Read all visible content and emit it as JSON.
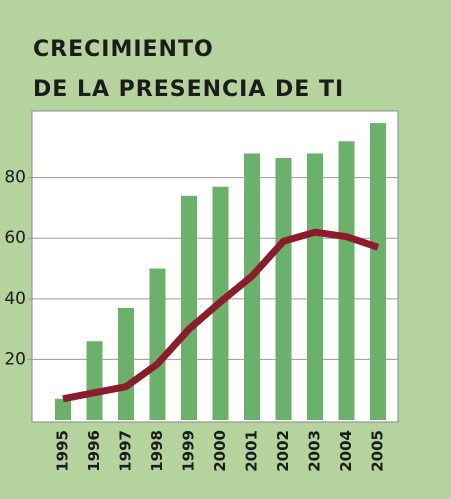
{
  "chart_data": {
    "type": "combo",
    "title": [
      "CRECIMIENTO",
      "DE LA PRESENCIA DE TI"
    ],
    "categories": [
      "1995",
      "1996",
      "1997",
      "1998",
      "1999",
      "2000",
      "2001",
      "2002",
      "2003",
      "2004",
      "2005"
    ],
    "series": [
      {
        "type": "bar",
        "color": "#6ab26a",
        "values": [
          7,
          26,
          37,
          50,
          74,
          77,
          88,
          86.5,
          88,
          92,
          98
        ]
      },
      {
        "type": "line",
        "color": "#8c1b2c",
        "values": [
          7,
          9,
          11,
          18.5,
          30,
          39,
          47.5,
          59,
          62,
          60.5,
          57
        ]
      }
    ],
    "ylim": [
      0,
      102
    ],
    "yticks": [
      20,
      40,
      60,
      80
    ],
    "grid": true
  }
}
